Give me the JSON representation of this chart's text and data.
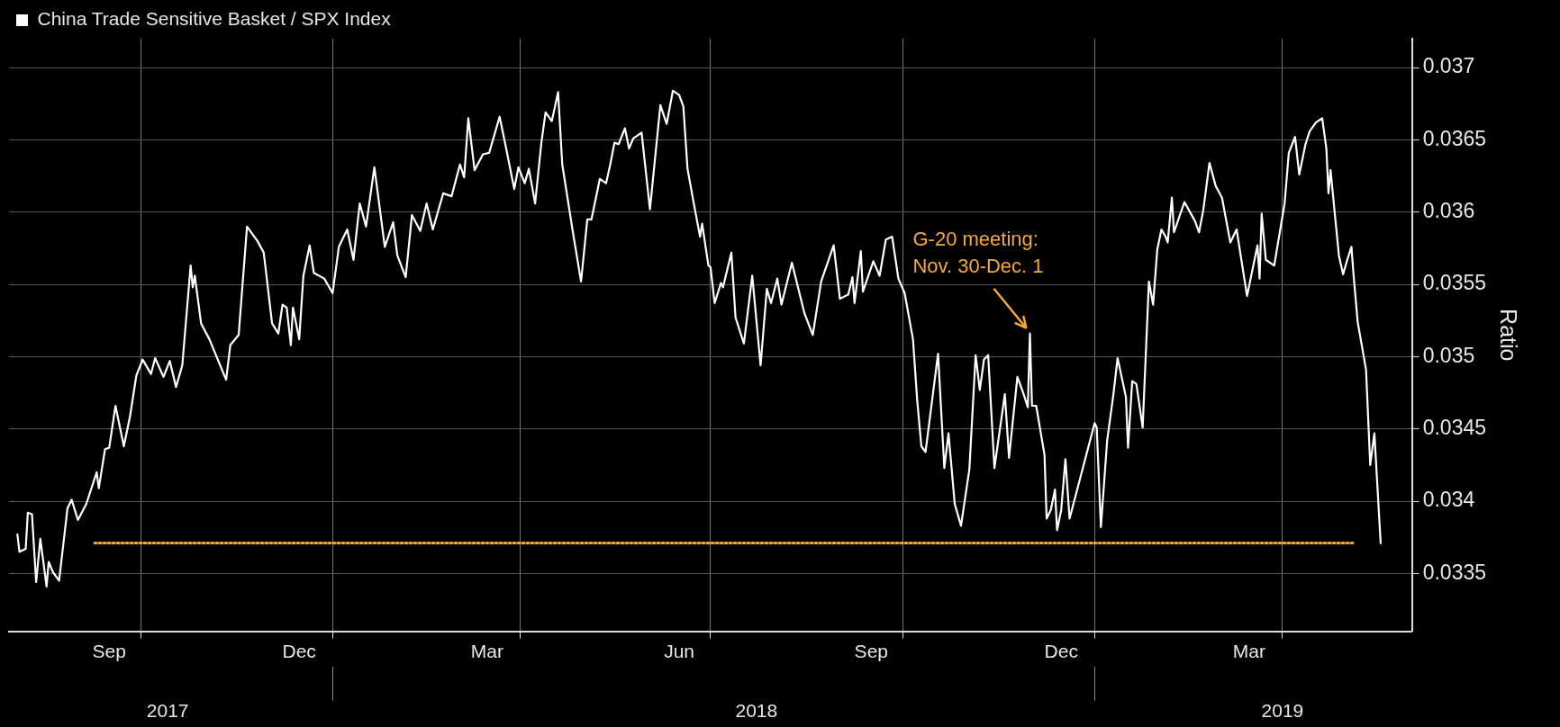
{
  "chart_data": {
    "type": "line",
    "legend": "top left",
    "ylabel": "Ratio",
    "grid": true,
    "marker": "none",
    "xlim": [
      "2017-07-30",
      "2019-06-02"
    ],
    "xticks": [
      {
        "value": "2017-09-16",
        "label": "Sep"
      },
      {
        "value": "2017-10-01",
        "label": null
      },
      {
        "value": "2017-12-16",
        "label": "Dec"
      },
      {
        "value": "2018-01-01",
        "label": null
      },
      {
        "value": "2018-03-16",
        "label": "Mar"
      },
      {
        "value": "2018-04-01",
        "label": null
      },
      {
        "value": "2018-06-16",
        "label": "Jun"
      },
      {
        "value": "2018-07-01",
        "label": null
      },
      {
        "value": "2018-09-16",
        "label": "Sep"
      },
      {
        "value": "2018-10-01",
        "label": null
      },
      {
        "value": "2018-12-16",
        "label": "Dec"
      },
      {
        "value": "2019-01-01",
        "label": null
      },
      {
        "value": "2019-03-16",
        "label": "Mar"
      },
      {
        "value": "2019-04-01",
        "label": null
      }
    ],
    "x2lim": [
      "2017-07-30",
      "2019-06-02"
    ],
    "x2ticks": [
      {
        "value": "2017-10-14",
        "label": "2017"
      },
      {
        "value": "2018-01-01",
        "label": null
      },
      {
        "value": "2018-07-23",
        "label": "2018"
      },
      {
        "value": "2019-01-01",
        "label": null
      },
      {
        "value": "2019-04-01",
        "label": "2019"
      }
    ],
    "ylim": [
      0.0331,
      0.0372
    ],
    "yticks": [
      0.0335,
      0.034,
      0.0345,
      0.035,
      0.0355,
      0.036,
      0.0365,
      0.037
    ],
    "annotations": [
      {
        "text": "G-20 meeting:\nNov. 30-Dec. 1",
        "x": "2018-12-01",
        "y": 0.03516
      }
    ],
    "series": [
      {
        "name": "China Trade Sensitive Basket / SPX Index",
        "color": "#ffffff",
        "line_style": "solid",
        "x": [
          "2017-08-03",
          "2017-08-04",
          "2017-08-07",
          "2017-08-08",
          "2017-08-10",
          "2017-08-12",
          "2017-08-14",
          "2017-08-17",
          "2017-08-18",
          "2017-08-20",
          "2017-08-23",
          "2017-08-27",
          "2017-08-29",
          "2017-09-01",
          "2017-09-05",
          "2017-09-10",
          "2017-09-11",
          "2017-09-14",
          "2017-09-16",
          "2017-09-19",
          "2017-09-23",
          "2017-09-26",
          "2017-09-29",
          "2017-10-02",
          "2017-10-06",
          "2017-10-08",
          "2017-10-12",
          "2017-10-15",
          "2017-10-18",
          "2017-10-21",
          "2017-10-25",
          "2017-10-26",
          "2017-10-27",
          "2017-10-30",
          "2017-11-03",
          "2017-11-07",
          "2017-11-11",
          "2017-11-13",
          "2017-11-17",
          "2017-11-21",
          "2017-11-26",
          "2017-11-29",
          "2017-12-03",
          "2017-12-06",
          "2017-12-08",
          "2017-12-10",
          "2017-12-12",
          "2017-12-13",
          "2017-12-16",
          "2017-12-18",
          "2017-12-21",
          "2017-12-23",
          "2017-12-28",
          "2018-01-01",
          "2018-01-04",
          "2018-01-08",
          "2018-01-11",
          "2018-01-14",
          "2018-01-17",
          "2018-01-21",
          "2018-01-26",
          "2018-01-30",
          "2018-02-01",
          "2018-02-05",
          "2018-02-08",
          "2018-02-12",
          "2018-02-15",
          "2018-02-18",
          "2018-02-23",
          "2018-02-27",
          "2018-03-03",
          "2018-03-05",
          "2018-03-07",
          "2018-03-10",
          "2018-03-14",
          "2018-03-17",
          "2018-03-22",
          "2018-03-25",
          "2018-03-29",
          "2018-03-31",
          "2018-04-03",
          "2018-04-05",
          "2018-04-08",
          "2018-04-11",
          "2018-04-13",
          "2018-04-16",
          "2018-04-19",
          "2018-04-21",
          "2018-04-26",
          "2018-04-30",
          "2018-05-03",
          "2018-05-05",
          "2018-05-09",
          "2018-05-12",
          "2018-05-14",
          "2018-05-16",
          "2018-05-18",
          "2018-05-21",
          "2018-05-23",
          "2018-05-25",
          "2018-05-29",
          "2018-06-02",
          "2018-06-07",
          "2018-06-10",
          "2018-06-13",
          "2018-06-16",
          "2018-06-18",
          "2018-06-20",
          "2018-06-23",
          "2018-06-26",
          "2018-06-27",
          "2018-06-30",
          "2018-07-01",
          "2018-07-03",
          "2018-07-06",
          "2018-07-07",
          "2018-07-11",
          "2018-07-13",
          "2018-07-17",
          "2018-07-21",
          "2018-07-25",
          "2018-07-28",
          "2018-07-30",
          "2018-08-02",
          "2018-08-04",
          "2018-08-09",
          "2018-08-15",
          "2018-08-19",
          "2018-08-23",
          "2018-08-29",
          "2018-09-01",
          "2018-09-05",
          "2018-09-07",
          "2018-09-08",
          "2018-09-11",
          "2018-09-12",
          "2018-09-17",
          "2018-09-20",
          "2018-09-23",
          "2018-09-26",
          "2018-09-29",
          "2018-10-02",
          "2018-10-06",
          "2018-10-08",
          "2018-10-10",
          "2018-10-12",
          "2018-10-18",
          "2018-10-21",
          "2018-10-23",
          "2018-10-26",
          "2018-10-29",
          "2018-11-02",
          "2018-11-05",
          "2018-11-07",
          "2018-11-09",
          "2018-11-11",
          "2018-11-14",
          "2018-11-19",
          "2018-11-21",
          "2018-11-25",
          "2018-11-28",
          "2018-11-30",
          "2018-12-01",
          "2018-12-02",
          "2018-12-04",
          "2018-12-08",
          "2018-12-09",
          "2018-12-11",
          "2018-12-13",
          "2018-12-14",
          "2018-12-16",
          "2018-12-18",
          "2018-12-20",
          "2018-12-22",
          "2018-12-24",
          "2018-12-28",
          "2019-01-01",
          "2019-01-02",
          "2019-01-04",
          "2019-01-07",
          "2019-01-10",
          "2019-01-12",
          "2019-01-16",
          "2019-01-17",
          "2019-01-19",
          "2019-01-21",
          "2019-01-24",
          "2019-01-27",
          "2019-01-29",
          "2019-01-31",
          "2019-02-02",
          "2019-02-04",
          "2019-02-05",
          "2019-02-07",
          "2019-02-08",
          "2019-02-13",
          "2019-02-18",
          "2019-02-20",
          "2019-02-22",
          "2019-02-25",
          "2019-02-28",
          "2019-03-03",
          "2019-03-07",
          "2019-03-10",
          "2019-03-15",
          "2019-03-18",
          "2019-03-20",
          "2019-03-21",
          "2019-03-22",
          "2019-03-24",
          "2019-03-28",
          "2019-04-02",
          "2019-04-04",
          "2019-04-07",
          "2019-04-09",
          "2019-04-12",
          "2019-04-14",
          "2019-04-17",
          "2019-04-20",
          "2019-04-22",
          "2019-04-23",
          "2019-04-24",
          "2019-04-28",
          "2019-04-30",
          "2019-05-02",
          "2019-05-04",
          "2019-05-05",
          "2019-05-07",
          "2019-05-11",
          "2019-05-13",
          "2019-05-15",
          "2019-05-18"
        ],
        "values": [
          0.03377,
          0.03365,
          0.03367,
          0.03392,
          0.03391,
          0.03344,
          0.03374,
          0.03341,
          0.03358,
          0.03351,
          0.03345,
          0.03395,
          0.03401,
          0.03387,
          0.03398,
          0.0342,
          0.03409,
          0.03436,
          0.03437,
          0.03466,
          0.03438,
          0.03459,
          0.03487,
          0.03498,
          0.03488,
          0.03499,
          0.03486,
          0.03497,
          0.03479,
          0.03494,
          0.03563,
          0.03548,
          0.03556,
          0.03523,
          0.03512,
          0.03498,
          0.03484,
          0.03508,
          0.03515,
          0.0359,
          0.0358,
          0.03572,
          0.03523,
          0.03516,
          0.03536,
          0.03534,
          0.03508,
          0.03534,
          0.03512,
          0.03556,
          0.03577,
          0.03558,
          0.03554,
          0.03544,
          0.03576,
          0.03588,
          0.03567,
          0.03606,
          0.0359,
          0.03631,
          0.03576,
          0.03593,
          0.0357,
          0.03555,
          0.03598,
          0.03587,
          0.03606,
          0.03588,
          0.03613,
          0.03611,
          0.03633,
          0.03624,
          0.03665,
          0.03629,
          0.0364,
          0.03641,
          0.03666,
          0.03645,
          0.03616,
          0.03631,
          0.0362,
          0.0363,
          0.03606,
          0.03648,
          0.03669,
          0.03663,
          0.03683,
          0.03633,
          0.03587,
          0.03552,
          0.03595,
          0.03595,
          0.03623,
          0.0362,
          0.03633,
          0.03648,
          0.03647,
          0.03658,
          0.03644,
          0.03651,
          0.03655,
          0.03602,
          0.03674,
          0.03661,
          0.03684,
          0.03681,
          0.03673,
          0.0363,
          0.03606,
          0.03583,
          0.03592,
          0.03563,
          0.03562,
          0.03537,
          0.03551,
          0.03548,
          0.03572,
          0.03527,
          0.03509,
          0.03556,
          0.03494,
          0.03547,
          0.03537,
          0.03554,
          0.03536,
          0.03565,
          0.0353,
          0.03515,
          0.03552,
          0.03577,
          0.0354,
          0.03543,
          0.03555,
          0.03537,
          0.03573,
          0.03545,
          0.03566,
          0.03556,
          0.03581,
          0.03583,
          0.03554,
          0.03544,
          0.03512,
          0.0347,
          0.03438,
          0.03434,
          0.03502,
          0.03423,
          0.03447,
          0.03398,
          0.03383,
          0.03422,
          0.03501,
          0.03477,
          0.03498,
          0.03501,
          0.03423,
          0.03474,
          0.0343,
          0.03486,
          0.03474,
          0.03465,
          0.03516,
          0.03466,
          0.03466,
          0.03432,
          0.03388,
          0.03394,
          0.03408,
          0.0338,
          0.03394,
          0.03429,
          0.03388,
          0.03399,
          0.0341,
          0.03432,
          0.03454,
          0.03451,
          0.03382,
          0.03442,
          0.03474,
          0.03499,
          0.03472,
          0.03437,
          0.03483,
          0.03481,
          0.03451,
          0.03552,
          0.03536,
          0.03574,
          0.03588,
          0.03583,
          0.03579,
          0.0361,
          0.03586,
          0.03607,
          0.03594,
          0.03586,
          0.03601,
          0.03634,
          0.03618,
          0.0361,
          0.03579,
          0.03588,
          0.03542,
          0.03563,
          0.03577,
          0.03554,
          0.03599,
          0.03567,
          0.03563,
          0.03606,
          0.03641,
          0.03652,
          0.03626,
          0.03647,
          0.03656,
          0.03662,
          0.03665,
          0.03644,
          0.03613,
          0.03629,
          0.0357,
          0.03557,
          0.03567,
          0.03576,
          0.03557,
          0.03524,
          0.03491,
          0.03425,
          0.03447,
          0.03371
        ]
      },
      {
        "color": "#f2a93b",
        "line_style": "dotted",
        "x": [
          "2017-09-09",
          "2019-05-05"
        ],
        "values": [
          0.03371,
          0.03371
        ]
      }
    ]
  }
}
